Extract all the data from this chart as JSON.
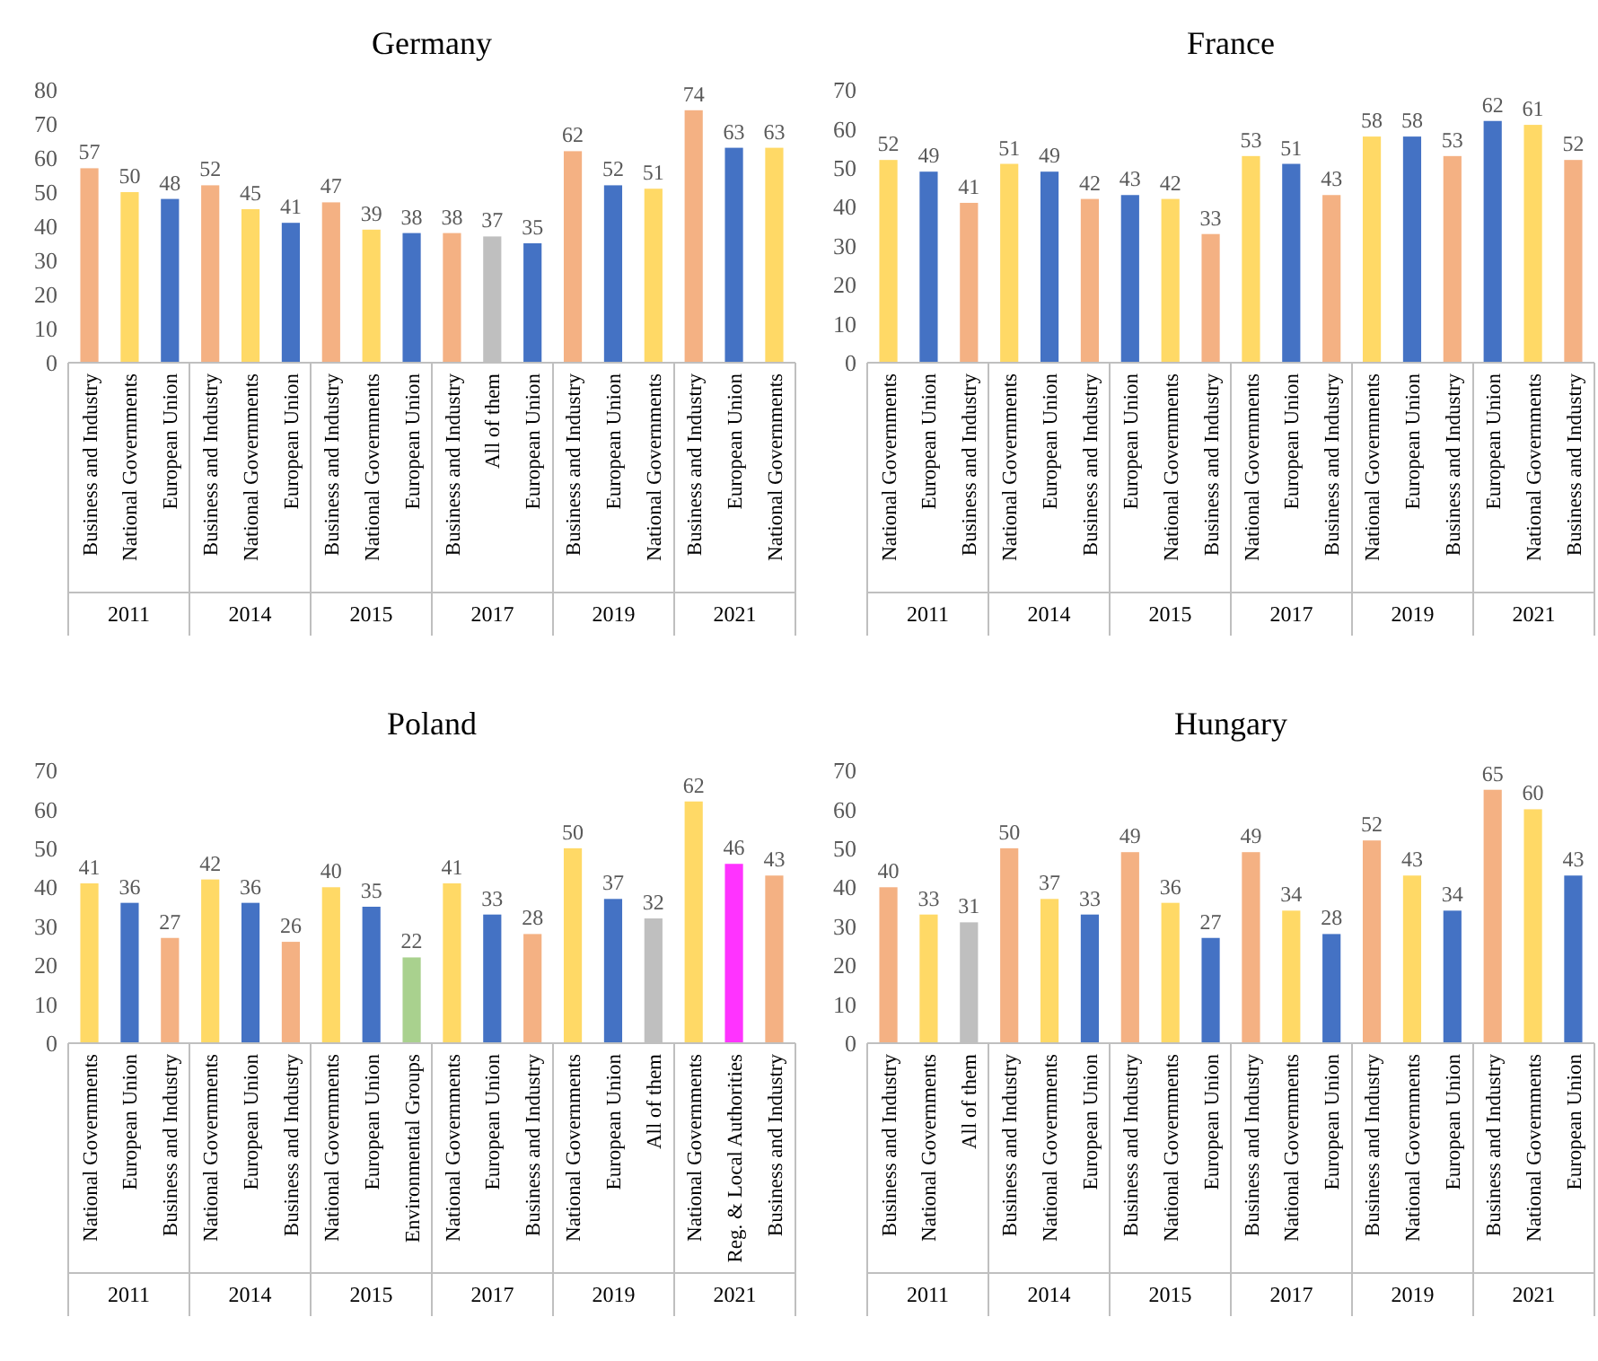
{
  "chart_data": [
    {
      "type": "bar",
      "title": "Germany",
      "categories": [
        "Business and Industry",
        "National Governments",
        "European Union",
        "Business and Industry",
        "National Governments",
        "European Union",
        "Business and Industry",
        "National Governments",
        "European Union",
        "Business and Industry",
        "All of them",
        "European Union",
        "Business and Industry",
        "European Union",
        "National Governments",
        "Business and Industry",
        "European Union",
        "National Governments"
      ],
      "values": [
        57,
        50,
        48,
        52,
        45,
        41,
        47,
        39,
        38,
        38,
        37,
        35,
        62,
        52,
        51,
        74,
        63,
        63
      ],
      "colors": [
        "#f4b183",
        "#ffd966",
        "#4472c4",
        "#f4b183",
        "#ffd966",
        "#4472c4",
        "#f4b183",
        "#ffd966",
        "#4472c4",
        "#f4b183",
        "#bfbfbf",
        "#4472c4",
        "#f4b183",
        "#4472c4",
        "#ffd966",
        "#f4b183",
        "#4472c4",
        "#ffd966"
      ],
      "ylim": [
        0,
        80
      ],
      "yticks": [
        0,
        10,
        20,
        30,
        40,
        50,
        60,
        70,
        80
      ],
      "data_labels": true,
      "annotations": [
        "2011",
        "2014",
        "2015",
        "2017",
        "2019",
        "2021"
      ]
    },
    {
      "type": "bar",
      "title": "France",
      "categories": [
        "National Governments",
        "European Union",
        "Business and Industry",
        "National Governments",
        "European Union",
        "Business and Industry",
        "European Union",
        "National Governments",
        "Business and Industry",
        "National Governments",
        "European Union",
        "Business and Industry",
        "National Governments",
        "European Union",
        "Business and Industry",
        "European Union",
        "National Governments",
        "Business and Industry"
      ],
      "values": [
        52,
        49,
        41,
        51,
        49,
        42,
        43,
        42,
        33,
        53,
        51,
        43,
        58,
        58,
        53,
        62,
        61,
        52
      ],
      "colors": [
        "#ffd966",
        "#4472c4",
        "#f4b183",
        "#ffd966",
        "#4472c4",
        "#f4b183",
        "#4472c4",
        "#ffd966",
        "#f4b183",
        "#ffd966",
        "#4472c4",
        "#f4b183",
        "#ffd966",
        "#4472c4",
        "#f4b183",
        "#4472c4",
        "#ffd966",
        "#f4b183"
      ],
      "ylim": [
        0,
        70
      ],
      "yticks": [
        0,
        10,
        20,
        30,
        40,
        50,
        60,
        70
      ],
      "data_labels": true,
      "annotations": [
        "2011",
        "2014",
        "2015",
        "2017",
        "2019",
        "2021"
      ]
    },
    {
      "type": "bar",
      "title": "Poland",
      "categories": [
        "National Governments",
        "European Union",
        "Business and Industry",
        "National Governments",
        "European Union",
        "Business and Industry",
        "National Governments",
        "European Union",
        "Environmental Groups",
        "National Governments",
        "European Union",
        "Business and Industry",
        "National Governments",
        "European Union",
        "All of them",
        "National Governments",
        "Reg. & Local Authorities",
        "Business and Industry"
      ],
      "values": [
        41,
        36,
        27,
        42,
        36,
        26,
        40,
        35,
        22,
        41,
        33,
        28,
        50,
        37,
        32,
        62,
        46,
        43
      ],
      "colors": [
        "#ffd966",
        "#4472c4",
        "#f4b183",
        "#ffd966",
        "#4472c4",
        "#f4b183",
        "#ffd966",
        "#4472c4",
        "#a9d18e",
        "#ffd966",
        "#4472c4",
        "#f4b183",
        "#ffd966",
        "#4472c4",
        "#bfbfbf",
        "#ffd966",
        "#ff33ff",
        "#f4b183"
      ],
      "ylim": [
        0,
        70
      ],
      "yticks": [
        0,
        10,
        20,
        30,
        40,
        50,
        60,
        70
      ],
      "data_labels": true,
      "annotations": [
        "2011",
        "2014",
        "2015",
        "2017",
        "2019",
        "2021"
      ]
    },
    {
      "type": "bar",
      "title": "Hungary",
      "categories": [
        "Business and Industry",
        "National Governments",
        "All of them",
        "Business and Industry",
        "National Governments",
        "European Union",
        "Business and Industry",
        "National Governments",
        "European Union",
        "Business and Industry",
        "National Governments",
        "European Union",
        "Business and Industry",
        "National Governments",
        "European Union",
        "Business and Industry",
        "National Governments",
        "European Union"
      ],
      "values": [
        40,
        33,
        31,
        50,
        37,
        33,
        49,
        36,
        27,
        49,
        34,
        28,
        52,
        43,
        34,
        65,
        60,
        43
      ],
      "colors": [
        "#f4b183",
        "#ffd966",
        "#bfbfbf",
        "#f4b183",
        "#ffd966",
        "#4472c4",
        "#f4b183",
        "#ffd966",
        "#4472c4",
        "#f4b183",
        "#ffd966",
        "#4472c4",
        "#f4b183",
        "#ffd966",
        "#4472c4",
        "#f4b183",
        "#ffd966",
        "#4472c4"
      ],
      "ylim": [
        0,
        70
      ],
      "yticks": [
        0,
        10,
        20,
        30,
        40,
        50,
        60,
        70
      ],
      "data_labels": true,
      "annotations": [
        "2011",
        "2014",
        "2015",
        "2017",
        "2019",
        "2021"
      ]
    }
  ]
}
